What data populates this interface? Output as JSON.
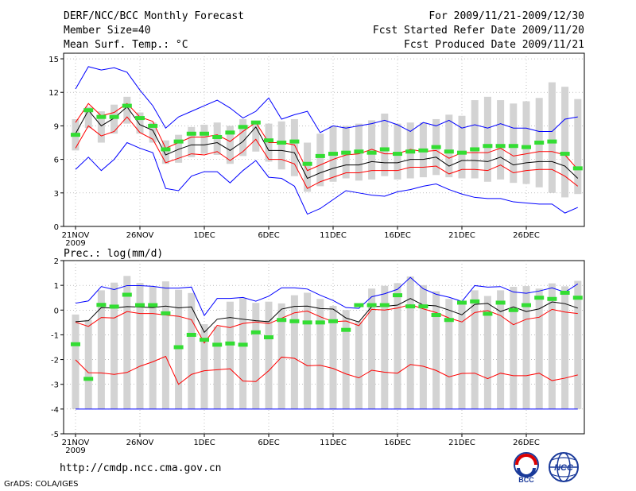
{
  "header": {
    "title": "DERF/NCC/BCC Monthly Forecast",
    "member_size": "Member Size=40",
    "variable": "Mean Surf. Temp.: °C",
    "period": "For 2009/11/21-2009/12/30",
    "started": "Fcst Started Refer Date 2009/11/20",
    "produced": "Fcst Produced Date 2009/11/21"
  },
  "footer": {
    "url": "http://cmdp.ncc.cma.gov.cn",
    "credit": "GrADS: COLA/IGES"
  },
  "logos": {
    "bcc": "BCC",
    "ncc": "NCC"
  },
  "colors": {
    "max_min": "#0000ff",
    "spread": "#ff0000",
    "mean": "#000000",
    "observed": "#33dd33",
    "box": "#d3d3d3"
  },
  "chart_data": [
    {
      "type": "line",
      "title": "Mean Surf. Temp.: °C",
      "ylabel": "°C",
      "ylim": [
        0,
        15.5
      ],
      "yticks": [
        0,
        3,
        6,
        9,
        12,
        15
      ],
      "grid": true,
      "x": [
        "11-21",
        "11-22",
        "11-23",
        "11-24",
        "11-25",
        "11-26",
        "11-27",
        "11-28",
        "11-29",
        "11-30",
        "12-01",
        "12-02",
        "12-03",
        "12-04",
        "12-05",
        "12-06",
        "12-07",
        "12-08",
        "12-09",
        "12-10",
        "12-11",
        "12-12",
        "12-13",
        "12-14",
        "12-15",
        "12-16",
        "12-17",
        "12-18",
        "12-19",
        "12-20",
        "12-21",
        "12-22",
        "12-23",
        "12-24",
        "12-25",
        "12-26",
        "12-27",
        "12-28",
        "12-29",
        "12-30"
      ],
      "xtick_labels": [
        {
          "index": 0,
          "label": "21NOV",
          "sub": "2009"
        },
        {
          "index": 5,
          "label": "26NOV"
        },
        {
          "index": 10,
          "label": "1DEC"
        },
        {
          "index": 15,
          "label": "6DEC"
        },
        {
          "index": 20,
          "label": "11DEC"
        },
        {
          "index": 25,
          "label": "16DEC"
        },
        {
          "index": 30,
          "label": "21DEC"
        },
        {
          "index": 35,
          "label": "26DEC"
        }
      ],
      "series": [
        {
          "name": "max",
          "color": "#0000ff",
          "values": [
            12.3,
            14.3,
            14.0,
            14.2,
            13.8,
            12.2,
            10.8,
            8.8,
            9.8,
            10.3,
            10.8,
            11.3,
            10.6,
            9.7,
            10.3,
            11.5,
            9.6,
            10.0,
            10.3,
            8.4,
            9.0,
            8.8,
            9.0,
            9.2,
            9.5,
            9.1,
            8.5,
            9.3,
            9.0,
            9.5,
            8.8,
            9.1,
            8.8,
            9.2,
            8.8,
            8.8,
            8.5,
            8.5,
            9.6,
            9.8
          ]
        },
        {
          "name": "upper",
          "color": "#ff0000",
          "values": [
            9.3,
            11.0,
            9.9,
            10.2,
            11.0,
            9.8,
            9.4,
            7.0,
            7.5,
            8.0,
            8.0,
            8.2,
            7.6,
            8.5,
            9.3,
            7.5,
            7.5,
            7.3,
            5.0,
            5.5,
            6.0,
            6.4,
            6.5,
            6.9,
            6.5,
            6.5,
            6.9,
            6.7,
            6.8,
            6.1,
            6.6,
            6.6,
            6.6,
            7.0,
            6.3,
            6.5,
            6.7,
            6.7,
            6.4,
            5.1
          ]
        },
        {
          "name": "mean",
          "color": "#000000",
          "values": [
            8.3,
            10.4,
            9.0,
            9.7,
            10.7,
            9.1,
            8.6,
            6.4,
            6.9,
            7.3,
            7.3,
            7.5,
            6.8,
            7.6,
            8.9,
            6.8,
            6.8,
            6.6,
            4.3,
            4.8,
            5.2,
            5.5,
            5.5,
            5.8,
            5.7,
            5.7,
            6.0,
            6.0,
            6.2,
            5.4,
            5.9,
            5.9,
            5.8,
            6.2,
            5.5,
            5.7,
            5.8,
            5.8,
            5.4,
            4.3
          ]
        },
        {
          "name": "lower",
          "color": "#ff0000",
          "values": [
            7.0,
            9.0,
            8.1,
            8.5,
            9.8,
            8.4,
            7.8,
            5.7,
            6.1,
            6.5,
            6.4,
            6.7,
            5.9,
            6.7,
            7.8,
            6.0,
            6.0,
            5.6,
            3.4,
            4.0,
            4.4,
            4.8,
            4.8,
            5.0,
            5.0,
            5.0,
            5.3,
            5.3,
            5.4,
            4.7,
            5.1,
            5.1,
            5.0,
            5.5,
            4.8,
            5.0,
            5.1,
            5.1,
            4.5,
            3.6
          ]
        },
        {
          "name": "min",
          "color": "#0000ff",
          "values": [
            5.1,
            6.2,
            5.0,
            6.0,
            7.5,
            7.0,
            6.6,
            3.4,
            3.2,
            4.5,
            4.9,
            4.9,
            3.9,
            5.0,
            5.9,
            4.4,
            4.3,
            3.6,
            1.1,
            1.6,
            2.4,
            3.2,
            3.0,
            2.8,
            2.7,
            3.1,
            3.3,
            3.6,
            3.8,
            3.3,
            2.9,
            2.6,
            2.5,
            2.5,
            2.2,
            2.1,
            2.0,
            2.0,
            1.2,
            1.7
          ]
        },
        {
          "name": "box_high",
          "color": "#d3d3d3",
          "values": [
            9.6,
            10.7,
            10.3,
            10.9,
            11.6,
            10.2,
            9.3,
            7.7,
            8.2,
            8.9,
            9.1,
            9.3,
            9.0,
            9.6,
            9.4,
            9.2,
            9.4,
            9.6,
            7.5,
            8.3,
            9.0,
            9.0,
            9.2,
            9.5,
            10.1,
            9.2,
            9.3,
            9.3,
            9.6,
            10.0,
            9.9,
            11.3,
            11.6,
            11.3,
            11.0,
            11.2,
            11.5,
            12.9,
            12.5,
            11.4
          ]
        },
        {
          "name": "box_low",
          "color": "#d3d3d3",
          "values": [
            6.8,
            8.8,
            7.5,
            8.3,
            9.2,
            8.3,
            7.5,
            5.6,
            5.7,
            6.2,
            6.5,
            6.4,
            5.6,
            6.3,
            6.7,
            5.8,
            5.1,
            4.5,
            3.1,
            3.6,
            4.0,
            4.3,
            4.1,
            4.2,
            4.5,
            4.2,
            4.3,
            4.4,
            4.6,
            4.4,
            4.3,
            4.3,
            4.0,
            4.2,
            3.9,
            3.8,
            3.5,
            3.0,
            2.6,
            2.9
          ]
        },
        {
          "name": "observed",
          "color": "#33dd33",
          "values": [
            8.2,
            10.4,
            9.8,
            9.8,
            10.8,
            9.7,
            9.0,
            6.9,
            7.6,
            8.3,
            8.3,
            8.0,
            8.4,
            8.9,
            9.3,
            7.7,
            7.5,
            7.6,
            5.6,
            6.3,
            6.5,
            6.6,
            6.7,
            6.6,
            6.9,
            6.5,
            6.7,
            6.8,
            7.1,
            6.7,
            6.6,
            6.9,
            7.2,
            7.2,
            7.2,
            7.1,
            7.5,
            7.6,
            6.5,
            5.2
          ]
        }
      ]
    },
    {
      "type": "line",
      "title": "Prec.: log(mm/d)",
      "ylabel": "log(mm/d)",
      "ylim": [
        -5,
        2
      ],
      "yticks": [
        -5,
        -4,
        -3,
        -2,
        -1,
        0,
        1,
        2
      ],
      "grid": true,
      "x": [
        "11-21",
        "11-22",
        "11-23",
        "11-24",
        "11-25",
        "11-26",
        "11-27",
        "11-28",
        "11-29",
        "11-30",
        "12-01",
        "12-02",
        "12-03",
        "12-04",
        "12-05",
        "12-06",
        "12-07",
        "12-08",
        "12-09",
        "12-10",
        "12-11",
        "12-12",
        "12-13",
        "12-14",
        "12-15",
        "12-16",
        "12-17",
        "12-18",
        "12-19",
        "12-20",
        "12-21",
        "12-22",
        "12-23",
        "12-24",
        "12-25",
        "12-26",
        "12-27",
        "12-28",
        "12-29",
        "12-30"
      ],
      "xtick_labels": [
        {
          "index": 0,
          "label": "21NOV",
          "sub": "2009"
        },
        {
          "index": 5,
          "label": "26NOV"
        },
        {
          "index": 10,
          "label": "1DEC"
        },
        {
          "index": 15,
          "label": "6DEC"
        },
        {
          "index": 20,
          "label": "11DEC"
        },
        {
          "index": 25,
          "label": "16DEC"
        },
        {
          "index": 30,
          "label": "21DEC"
        },
        {
          "index": 35,
          "label": "26DEC"
        }
      ],
      "series": [
        {
          "name": "max",
          "color": "#0000ff",
          "values": [
            0.28,
            0.37,
            0.95,
            0.83,
            0.99,
            0.99,
            0.96,
            0.89,
            0.89,
            0.93,
            -0.22,
            0.47,
            0.47,
            0.51,
            0.36,
            0.56,
            0.9,
            0.9,
            0.85,
            0.6,
            0.39,
            0.1,
            0.07,
            0.54,
            0.66,
            0.84,
            1.32,
            0.86,
            0.64,
            0.52,
            0.35,
            0.99,
            0.93,
            0.95,
            0.73,
            0.68,
            0.77,
            0.9,
            0.72,
            1.06
          ]
        },
        {
          "name": "upper",
          "color": "#ff0000",
          "values": [
            -0.49,
            -0.66,
            -0.3,
            -0.32,
            -0.06,
            -0.14,
            -0.14,
            -0.2,
            -0.25,
            -0.39,
            -1.33,
            -0.62,
            -0.71,
            -0.54,
            -0.48,
            -0.55,
            -0.33,
            -0.11,
            -0.04,
            -0.27,
            -0.47,
            -0.44,
            -0.63,
            0.03,
            0.0,
            0.08,
            0.22,
            0.05,
            -0.1,
            -0.32,
            -0.48,
            -0.1,
            -0.02,
            -0.22,
            -0.59,
            -0.37,
            -0.29,
            0.03,
            -0.08,
            -0.14
          ]
        },
        {
          "name": "mean",
          "color": "#000000",
          "values": [
            -0.47,
            -0.43,
            0.1,
            0.08,
            0.14,
            0.12,
            0.1,
            0.16,
            0.09,
            0.13,
            -0.9,
            -0.37,
            -0.3,
            -0.37,
            -0.43,
            -0.47,
            0.04,
            0.15,
            0.16,
            0.06,
            0.04,
            -0.32,
            -0.48,
            0.14,
            0.15,
            0.2,
            0.47,
            0.2,
            0.17,
            0.0,
            -0.19,
            0.23,
            0.27,
            -0.06,
            0.13,
            -0.06,
            0.05,
            0.33,
            0.26,
            0.08
          ]
        },
        {
          "name": "lower",
          "color": "#ff0000",
          "values": [
            -2.01,
            -2.53,
            -2.54,
            -2.6,
            -2.52,
            -2.27,
            -2.09,
            -1.87,
            -3.0,
            -2.6,
            -2.45,
            -2.41,
            -2.37,
            -2.87,
            -2.89,
            -2.45,
            -1.9,
            -1.95,
            -2.25,
            -2.23,
            -2.36,
            -2.58,
            -2.74,
            -2.43,
            -2.51,
            -2.55,
            -2.2,
            -2.27,
            -2.44,
            -2.7,
            -2.56,
            -2.55,
            -2.77,
            -2.55,
            -2.65,
            -2.65,
            -2.55,
            -2.85,
            -2.75,
            -2.62
          ]
        },
        {
          "name": "min",
          "color": "#0000ff",
          "values": [
            -4.0,
            -4.0,
            -4.0,
            -4.0,
            -4.0,
            -4.0,
            -4.0,
            -4.0,
            -4.0,
            -4.0,
            -4.0,
            -4.0,
            -4.0,
            -4.0,
            -4.0,
            -4.0,
            -4.0,
            -4.0,
            -4.0,
            -4.0,
            -4.0,
            -4.0,
            -4.0,
            -4.0,
            -4.0,
            -4.0,
            -4.0,
            -4.0,
            -4.0,
            -4.0,
            -4.0,
            -4.0,
            -4.0,
            -4.0,
            -4.0,
            -4.0,
            -4.0,
            -4.0,
            -4.0,
            -4.0
          ]
        },
        {
          "name": "box_high",
          "color": "#d3d3d3",
          "values": [
            -0.18,
            -0.4,
            0.8,
            1.11,
            1.38,
            1.1,
            0.94,
            1.16,
            0.82,
            0.69,
            -0.57,
            -0.67,
            0.34,
            0.48,
            0.29,
            0.34,
            0.27,
            0.6,
            0.7,
            0.45,
            0.17,
            0.0,
            -0.45,
            0.87,
            0.98,
            1.09,
            1.36,
            1.01,
            0.76,
            0.45,
            0.27,
            0.8,
            0.57,
            0.8,
            0.94,
            0.97,
            0.87,
            1.08,
            0.96,
            1.18
          ]
        },
        {
          "name": "box_low",
          "color": "#d3d3d3",
          "values": [
            -4.0,
            -4.0,
            -4.0,
            -4.0,
            -4.0,
            -4.0,
            -4.0,
            -4.0,
            -4.0,
            -4.0,
            -4.0,
            -4.0,
            -4.0,
            -4.0,
            -4.0,
            -4.0,
            -4.0,
            -4.0,
            -4.0,
            -4.0,
            -4.0,
            -4.0,
            -4.0,
            -4.0,
            -4.0,
            -4.0,
            -4.0,
            -4.0,
            -4.0,
            -4.0,
            -4.0,
            -4.0,
            -4.0,
            -4.0,
            -4.0,
            -4.0,
            -4.0,
            -4.0,
            -4.0,
            -4.0
          ]
        },
        {
          "name": "observed",
          "color": "#33dd33",
          "values": [
            -1.38,
            -2.78,
            0.21,
            0.14,
            0.62,
            0.2,
            0.2,
            -0.13,
            -1.5,
            -1.0,
            -1.2,
            -1.4,
            -1.35,
            -1.4,
            -0.9,
            -1.1,
            -0.4,
            -0.45,
            -0.5,
            -0.5,
            -0.45,
            -0.8,
            0.2,
            0.2,
            0.2,
            0.6,
            0.15,
            0.15,
            -0.2,
            -0.4,
            0.3,
            0.35,
            -0.15,
            0.3,
            0.0,
            0.2,
            0.5,
            0.45,
            0.7,
            0.5
          ]
        }
      ]
    }
  ]
}
